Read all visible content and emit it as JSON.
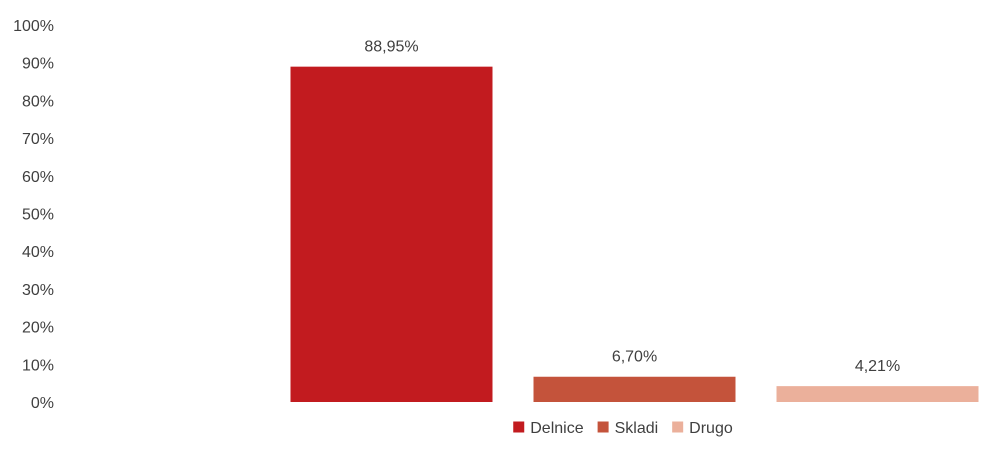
{
  "chart_data": {
    "type": "bar",
    "categories": [
      "Delnice",
      "Skladi",
      "Drugo"
    ],
    "values": [
      88.95,
      6.7,
      4.21
    ],
    "data_labels": [
      "88,95%",
      "6,70%",
      "4,21%"
    ],
    "colors": [
      "#c21b1f",
      "#c4533b",
      "#ebb09b"
    ],
    "ylim": [
      0,
      100
    ],
    "yticks": [
      0,
      10,
      20,
      30,
      40,
      50,
      60,
      70,
      80,
      90,
      100
    ],
    "ytick_labels": [
      "0%",
      "10%",
      "20%",
      "30%",
      "40%",
      "50%",
      "60%",
      "70%",
      "80%",
      "90%",
      "100%"
    ],
    "grid": false,
    "legend": {
      "position": "bottom",
      "entries": [
        "Delnice",
        "Skladi",
        "Drugo"
      ]
    },
    "title": "",
    "xlabel": "",
    "ylabel": ""
  }
}
